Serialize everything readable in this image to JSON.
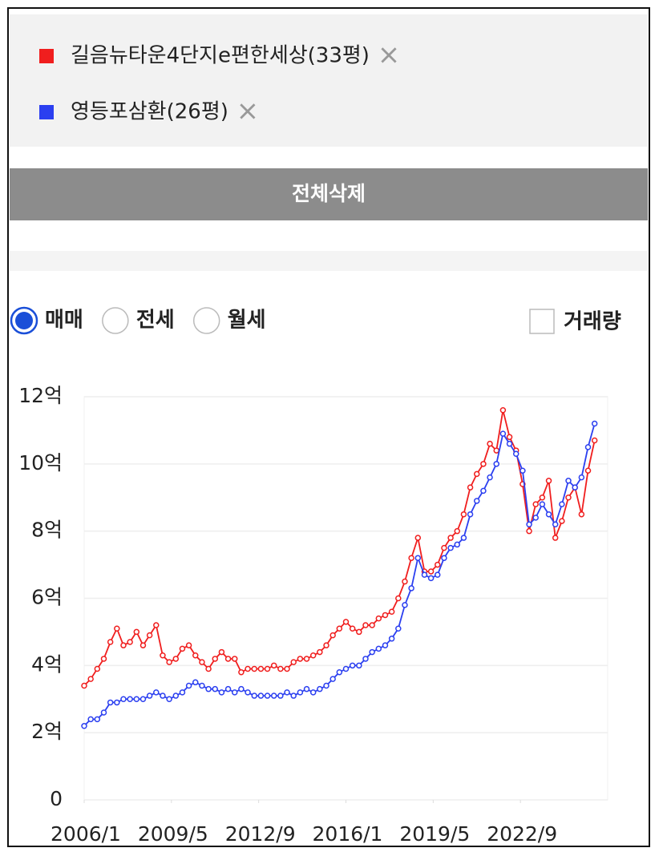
{
  "legend_items_close": "×",
  "controls": {
    "clear_all": "전체삭제",
    "trade_types": [
      "매매",
      "전세",
      "월세"
    ],
    "selected_trade_type": "매매",
    "volume": "거래량"
  },
  "chart_data": {
    "type": "line",
    "x": [
      "2006/1",
      "2006/4",
      "2006/7",
      "2006/10",
      "2007/1",
      "2007/4",
      "2007/7",
      "2007/10",
      "2008/1",
      "2008/4",
      "2008/7",
      "2008/10",
      "2009/1",
      "2009/4",
      "2009/7",
      "2009/10",
      "2010/1",
      "2010/4",
      "2010/7",
      "2010/10",
      "2011/1",
      "2011/4",
      "2011/7",
      "2011/10",
      "2012/1",
      "2012/4",
      "2012/7",
      "2012/10",
      "2013/1",
      "2013/4",
      "2013/7",
      "2013/10",
      "2014/1",
      "2014/4",
      "2014/7",
      "2014/10",
      "2015/1",
      "2015/4",
      "2015/7",
      "2015/10",
      "2016/1",
      "2016/4",
      "2016/7",
      "2016/10",
      "2017/1",
      "2017/4",
      "2017/7",
      "2017/10",
      "2018/1",
      "2018/4",
      "2018/7",
      "2018/10",
      "2019/1",
      "2019/4",
      "2019/7",
      "2019/10",
      "2020/1",
      "2020/4",
      "2020/7",
      "2020/10",
      "2021/1",
      "2021/4",
      "2021/7",
      "2021/10",
      "2022/1",
      "2022/4",
      "2022/7",
      "2022/10",
      "2023/1",
      "2023/4",
      "2023/7",
      "2023/10",
      "2024/1",
      "2024/4",
      "2024/7",
      "2024/10",
      "2025/1",
      "2025/4",
      "2025/7"
    ],
    "series": [
      {
        "name": "길음뉴타운4단지e편한세상(33평)",
        "color": "#f01e1e",
        "values": [
          3.4,
          3.6,
          3.9,
          4.2,
          4.7,
          5.1,
          4.6,
          4.7,
          5.0,
          4.6,
          4.9,
          5.2,
          4.3,
          4.1,
          4.2,
          4.5,
          4.6,
          4.3,
          4.1,
          3.9,
          4.2,
          4.4,
          4.2,
          4.2,
          3.8,
          3.9,
          3.9,
          3.9,
          3.9,
          4.0,
          3.9,
          3.9,
          4.1,
          4.2,
          4.2,
          4.3,
          4.4,
          4.6,
          4.9,
          5.1,
          5.3,
          5.1,
          5.0,
          5.2,
          5.2,
          5.4,
          5.5,
          5.6,
          6.0,
          6.5,
          7.2,
          7.8,
          6.8,
          6.8,
          7.0,
          7.5,
          7.8,
          8.0,
          8.5,
          9.3,
          9.7,
          10.0,
          10.6,
          10.4,
          11.6,
          10.8,
          10.4,
          9.4,
          8.0,
          8.8,
          9.0,
          9.5,
          7.8,
          8.3,
          9.0,
          9.3,
          8.5,
          9.8,
          10.7
        ]
      },
      {
        "name": "영등포삼환(26평)",
        "color": "#2b3ff0",
        "values": [
          2.2,
          2.4,
          2.4,
          2.6,
          2.9,
          2.9,
          3.0,
          3.0,
          3.0,
          3.0,
          3.1,
          3.2,
          3.1,
          3.0,
          3.1,
          3.2,
          3.4,
          3.5,
          3.4,
          3.3,
          3.3,
          3.2,
          3.3,
          3.2,
          3.3,
          3.2,
          3.1,
          3.1,
          3.1,
          3.1,
          3.1,
          3.2,
          3.1,
          3.2,
          3.3,
          3.2,
          3.3,
          3.4,
          3.6,
          3.8,
          3.9,
          4.0,
          4.0,
          4.2,
          4.4,
          4.5,
          4.6,
          4.8,
          5.1,
          5.8,
          6.3,
          7.2,
          6.7,
          6.6,
          6.7,
          7.2,
          7.5,
          7.6,
          7.8,
          8.5,
          8.9,
          9.2,
          9.6,
          10.0,
          10.9,
          10.6,
          10.3,
          9.8,
          8.2,
          8.4,
          8.8,
          8.5,
          8.2,
          8.8,
          9.5,
          9.3,
          9.6,
          10.5,
          11.2
        ]
      }
    ],
    "xlim": [
      "2006/1",
      "2026/1"
    ],
    "xticks": [
      "2006/1",
      "2009/5",
      "2012/9",
      "2016/1",
      "2019/5",
      "2022/9"
    ],
    "ylim": [
      0,
      12
    ],
    "yticks": [
      0,
      {
        "value": 2,
        "label": "2억"
      },
      {
        "value": 4,
        "label": "4억"
      },
      {
        "value": 6,
        "label": "6억"
      },
      {
        "value": 8,
        "label": "8억"
      },
      {
        "value": 10,
        "label": "10억"
      },
      {
        "value": 12,
        "label": "12억"
      }
    ],
    "grid": true
  }
}
